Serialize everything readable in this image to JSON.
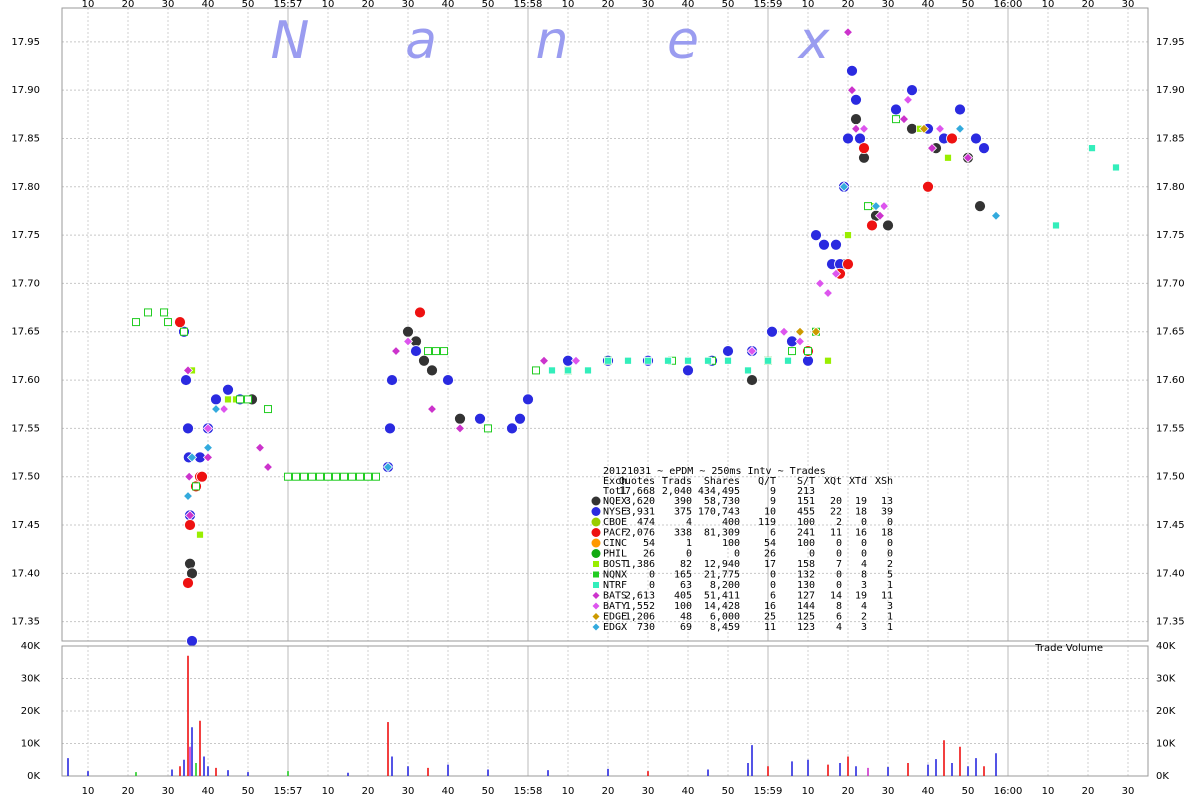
{
  "chart_data": [
    {
      "type": "scatter",
      "watermark": [
        "N",
        "a",
        "n",
        "e",
        "x"
      ],
      "legend_title": "20121031 ~ ePDM ~ 250ms Intv ~ Trades",
      "legend_columns": [
        "Exch",
        "Quotes",
        "Trads",
        "Shares",
        "Q/T",
        "S/T",
        "XQt",
        "XTd",
        "XSh"
      ],
      "total": [
        "Totl",
        "17,668",
        "2,040",
        "434,495",
        "9",
        "213"
      ],
      "xlim": [
        3.5,
        275
      ],
      "xticks": [
        10,
        20,
        30,
        40,
        50,
        {
          "value": 60,
          "label": "15:57"
        },
        {
          "value": 70,
          "label": "10"
        },
        {
          "value": 80,
          "label": "20"
        },
        {
          "value": 90,
          "label": "30"
        },
        {
          "value": 100,
          "label": "40"
        },
        {
          "value": 110,
          "label": "50"
        },
        {
          "value": 120,
          "label": "15:58"
        },
        {
          "value": 130,
          "label": "10"
        },
        {
          "value": 140,
          "label": "20"
        },
        {
          "value": 150,
          "label": "30"
        },
        {
          "value": 160,
          "label": "40"
        },
        {
          "value": 170,
          "label": "50"
        },
        {
          "value": 180,
          "label": "15:59"
        },
        {
          "value": 190,
          "label": "10"
        },
        {
          "value": 200,
          "label": "20"
        },
        {
          "value": 210,
          "label": "30"
        },
        {
          "value": 220,
          "label": "40"
        },
        {
          "value": 230,
          "label": "50"
        },
        {
          "value": 240,
          "label": "16:00"
        },
        {
          "value": 250,
          "label": "10"
        },
        {
          "value": 260,
          "label": "20"
        },
        {
          "value": 270,
          "label": "30"
        }
      ],
      "ylim": [
        17.33,
        17.985
      ],
      "yticks": [
        17.35,
        {
          "value": 17.4,
          "label": "17.40"
        },
        17.45,
        {
          "value": 17.5,
          "label": "17.50"
        },
        17.55,
        {
          "value": 17.6,
          "label": "17.60"
        },
        17.65,
        {
          "value": 17.7,
          "label": "17.70"
        },
        17.75,
        {
          "value": 17.8,
          "label": "17.80"
        },
        17.85,
        {
          "value": 17.9,
          "label": "17.90"
        },
        17.95
      ],
      "grid": true,
      "series": [
        {
          "name": "NQEX",
          "color": "#333333",
          "marker": "circle",
          "stats": [
            "3,620",
            "390",
            "58,730",
            "9",
            "151",
            "20",
            "19",
            "13"
          ],
          "x": [
            33,
            35.5,
            36,
            42,
            48,
            51,
            90,
            92,
            94,
            96,
            100,
            103,
            176,
            190,
            196,
            199,
            202,
            204,
            207,
            210,
            216,
            222,
            226,
            230,
            233
          ],
          "values": [
            17.66,
            17.41,
            17.4,
            17.58,
            17.58,
            17.58,
            17.65,
            17.64,
            17.62,
            17.61,
            17.6,
            17.56,
            17.6,
            17.63,
            17.72,
            17.72,
            17.87,
            17.83,
            17.77,
            17.76,
            17.86,
            17.84,
            17.85,
            17.83,
            17.78
          ]
        },
        {
          "name": "NYSE",
          "color": "#2a2ae0",
          "marker": "circle",
          "stats": [
            "3,931",
            "375",
            "170,743",
            "10",
            "455",
            "22",
            "18",
            "39"
          ],
          "x": [
            34,
            34.5,
            35,
            35.2,
            35.5,
            36,
            38,
            40,
            42,
            45,
            48,
            85,
            85.5,
            86,
            92,
            100,
            108,
            116,
            118,
            120,
            130,
            140,
            150,
            160,
            166,
            170,
            176,
            181,
            186,
            190,
            192,
            194,
            196,
            197,
            198,
            199,
            200,
            201,
            202,
            203,
            212,
            216,
            220,
            224,
            228,
            232,
            234
          ],
          "values": [
            17.65,
            17.6,
            17.55,
            17.52,
            17.46,
            17.33,
            17.52,
            17.55,
            17.58,
            17.59,
            17.58,
            17.51,
            17.55,
            17.6,
            17.63,
            17.6,
            17.56,
            17.55,
            17.56,
            17.58,
            17.62,
            17.62,
            17.62,
            17.61,
            17.62,
            17.63,
            17.63,
            17.65,
            17.64,
            17.62,
            17.75,
            17.74,
            17.72,
            17.74,
            17.72,
            17.8,
            17.85,
            17.92,
            17.89,
            17.85,
            17.88,
            17.9,
            17.86,
            17.85,
            17.88,
            17.85,
            17.84
          ]
        },
        {
          "name": "CBOE",
          "color": "#99cc00",
          "marker": "circle",
          "stats": [
            "474",
            "4",
            "400",
            "119",
            "100",
            "2",
            "0",
            "0"
          ],
          "x": [],
          "values": []
        },
        {
          "name": "PACF",
          "color": "#ee1111",
          "marker": "circle",
          "stats": [
            "2,076",
            "338",
            "81,309",
            "6",
            "241",
            "11",
            "16",
            "18"
          ],
          "x": [
            33,
            35,
            35.5,
            37,
            38,
            38.5,
            93,
            190,
            198,
            200,
            204,
            206,
            220,
            226
          ],
          "values": [
            17.66,
            17.39,
            17.45,
            17.49,
            17.5,
            17.5,
            17.67,
            17.63,
            17.71,
            17.72,
            17.84,
            17.76,
            17.8,
            17.85
          ]
        },
        {
          "name": "CINC",
          "color": "#ff9900",
          "marker": "circle",
          "stats": [
            "54",
            "1",
            "100",
            "54",
            "100",
            "0",
            "0",
            "0"
          ],
          "x": [],
          "values": []
        },
        {
          "name": "PHIL",
          "color": "#11aa11",
          "marker": "circle",
          "stats": [
            "26",
            "0",
            "0",
            "26",
            "0",
            "0",
            "0",
            "0"
          ],
          "x": [],
          "values": []
        },
        {
          "name": "BOST",
          "color": "#99ee00",
          "marker": "square",
          "stats": [
            "1,386",
            "82",
            "12,940",
            "17",
            "158",
            "7",
            "4",
            "2"
          ],
          "x": [
            36,
            38,
            45,
            47,
            49,
            195,
            200,
            206,
            218,
            225
          ],
          "values": [
            17.61,
            17.44,
            17.58,
            17.58,
            17.58,
            17.62,
            17.75,
            17.78,
            17.86,
            17.83
          ]
        },
        {
          "name": "NQNX",
          "color": "#22cc22",
          "marker": "hollow-square",
          "stats": [
            "0",
            "165",
            "21,775",
            "0",
            "132",
            "0",
            "8",
            "5"
          ],
          "x": [
            22,
            25,
            29,
            30,
            34,
            37,
            48,
            50,
            55,
            60,
            62,
            64,
            66,
            68,
            70,
            72,
            74,
            76,
            78,
            80,
            82,
            95,
            97,
            99,
            110,
            122,
            130,
            140,
            156,
            166,
            180,
            186,
            190,
            192,
            205,
            212
          ],
          "values": [
            17.66,
            17.67,
            17.67,
            17.66,
            17.65,
            17.49,
            17.58,
            17.58,
            17.57,
            17.5,
            17.5,
            17.5,
            17.5,
            17.5,
            17.5,
            17.5,
            17.5,
            17.5,
            17.5,
            17.5,
            17.5,
            17.63,
            17.63,
            17.63,
            17.55,
            17.61,
            17.61,
            17.62,
            17.62,
            17.62,
            17.62,
            17.63,
            17.63,
            17.65,
            17.78,
            17.87
          ]
        },
        {
          "name": "NTRF",
          "color": "#33eebb",
          "marker": "square",
          "stats": [
            "0",
            "63",
            "8,200",
            "0",
            "130",
            "0",
            "3",
            "1"
          ],
          "x": [
            126,
            130,
            135,
            140,
            145,
            150,
            155,
            160,
            165,
            170,
            175,
            180,
            185,
            252,
            261,
            267
          ],
          "values": [
            17.61,
            17.61,
            17.61,
            17.62,
            17.62,
            17.62,
            17.62,
            17.62,
            17.62,
            17.62,
            17.61,
            17.62,
            17.62,
            17.76,
            17.84,
            17.82
          ]
        },
        {
          "name": "BATS",
          "color": "#cc33cc",
          "marker": "diamond",
          "stats": [
            "2,613",
            "405",
            "51,411",
            "6",
            "127",
            "14",
            "19",
            "11"
          ],
          "x": [
            35,
            35.3,
            35.5,
            40,
            53,
            55,
            87,
            96,
            103,
            124,
            200,
            201,
            202,
            208,
            214,
            221,
            230
          ],
          "values": [
            17.61,
            17.5,
            17.46,
            17.52,
            17.53,
            17.51,
            17.63,
            17.57,
            17.55,
            17.62,
            17.96,
            17.9,
            17.86,
            17.77,
            17.87,
            17.84,
            17.83
          ]
        },
        {
          "name": "BATY",
          "color": "#dd55ee",
          "marker": "diamond",
          "stats": [
            "1,552",
            "100",
            "14,428",
            "16",
            "144",
            "8",
            "4",
            "3"
          ],
          "x": [
            40,
            44,
            90,
            132,
            176,
            184,
            188,
            193,
            195,
            197,
            204,
            209,
            215,
            223
          ],
          "values": [
            17.55,
            17.57,
            17.64,
            17.62,
            17.63,
            17.65,
            17.64,
            17.7,
            17.69,
            17.71,
            17.86,
            17.78,
            17.89,
            17.86
          ]
        },
        {
          "name": "EDGE",
          "color": "#cc9900",
          "marker": "diamond",
          "stats": [
            "1,206",
            "48",
            "6,000",
            "25",
            "125",
            "6",
            "2",
            "1"
          ],
          "x": [
            188,
            192,
            219
          ],
          "values": [
            17.65,
            17.65,
            17.86
          ]
        },
        {
          "name": "EDGX",
          "color": "#33aadd",
          "marker": "diamond",
          "stats": [
            "730",
            "69",
            "8,459",
            "11",
            "123",
            "4",
            "3",
            "1"
          ],
          "x": [
            35,
            36,
            40,
            42,
            85,
            199,
            207,
            228,
            237
          ],
          "values": [
            17.48,
            17.52,
            17.53,
            17.57,
            17.51,
            17.8,
            17.78,
            17.86,
            17.77
          ]
        }
      ]
    },
    {
      "type": "bar",
      "label": "Trade Volume",
      "xlim": [
        3.5,
        275
      ],
      "xticks": [
        10,
        20,
        30,
        40,
        50,
        {
          "value": 60,
          "label": "15:57"
        },
        {
          "value": 70,
          "label": "10"
        },
        {
          "value": 80,
          "label": "20"
        },
        {
          "value": 90,
          "label": "30"
        },
        {
          "value": 100,
          "label": "40"
        },
        {
          "value": 110,
          "label": "50"
        },
        {
          "value": 120,
          "label": "15:58"
        },
        {
          "value": 130,
          "label": "10"
        },
        {
          "value": 140,
          "label": "20"
        },
        {
          "value": 150,
          "label": "30"
        },
        {
          "value": 160,
          "label": "40"
        },
        {
          "value": 170,
          "label": "50"
        },
        {
          "value": 180,
          "label": "15:59"
        },
        {
          "value": 190,
          "label": "10"
        },
        {
          "value": 200,
          "label": "20"
        },
        {
          "value": 210,
          "label": "30"
        },
        {
          "value": 220,
          "label": "40"
        },
        {
          "value": 230,
          "label": "50"
        },
        {
          "value": 240,
          "label": "16:00"
        },
        {
          "value": 250,
          "label": "10"
        },
        {
          "value": 260,
          "label": "20"
        },
        {
          "value": 270,
          "label": "30"
        }
      ],
      "ylim": [
        0,
        40000
      ],
      "yticks": [
        {
          "value": 0,
          "label": "0K"
        },
        {
          "value": 10000,
          "label": "10K"
        },
        {
          "value": 20000,
          "label": "20K"
        },
        {
          "value": 30000,
          "label": "30K"
        },
        {
          "value": 40000,
          "label": "40K"
        }
      ],
      "x": [
        5,
        10,
        22,
        31,
        33,
        34,
        35,
        35.5,
        36,
        37,
        38,
        39,
        40,
        42,
        45,
        50,
        60,
        75,
        85,
        86,
        90,
        95,
        100,
        110,
        125,
        140,
        150,
        165,
        175,
        176,
        180,
        186,
        190,
        195,
        198,
        200,
        202,
        205,
        210,
        215,
        220,
        222,
        224,
        226,
        228,
        230,
        232,
        234,
        237
      ],
      "values": [
        5500,
        1500,
        1200,
        2000,
        3000,
        5000,
        37000,
        9000,
        15000,
        4000,
        17000,
        6000,
        3000,
        2500,
        1800,
        1200,
        1500,
        1000,
        16600,
        6000,
        3000,
        2500,
        3500,
        2000,
        1800,
        2200,
        1500,
        2000,
        4000,
        9500,
        3000,
        4500,
        5000,
        3500,
        4000,
        6000,
        3000,
        2500,
        2800,
        4000,
        3500,
        5200,
        11000,
        4000,
        9000,
        3000,
        5500,
        3000,
        7000
      ],
      "colors": [
        "#2a2ae0",
        "#2a2ae0",
        "#22cc22",
        "#2a2ae0",
        "#ee1111",
        "#2a2ae0",
        "#ee1111",
        "#cc33cc",
        "#2a2ae0",
        "#22cc22",
        "#ee1111",
        "#2a2ae0",
        "#2a2ae0",
        "#ee1111",
        "#2a2ae0",
        "#2a2ae0",
        "#22cc22",
        "#2a2ae0",
        "#ee1111",
        "#2a2ae0",
        "#2a2ae0",
        "#ee1111",
        "#2a2ae0",
        "#2a2ae0",
        "#2a2ae0",
        "#2a2ae0",
        "#ee1111",
        "#2a2ae0",
        "#2a2ae0",
        "#2a2ae0",
        "#ee1111",
        "#2a2ae0",
        "#2a2ae0",
        "#ee1111",
        "#2a2ae0",
        "#ee1111",
        "#2a2ae0",
        "#cc33cc",
        "#2a2ae0",
        "#ee1111",
        "#2a2ae0",
        "#2a2ae0",
        "#ee1111",
        "#2a2ae0",
        "#ee1111",
        "#2a2ae0",
        "#2a2ae0",
        "#ee1111",
        "#2a2ae0"
      ]
    }
  ]
}
